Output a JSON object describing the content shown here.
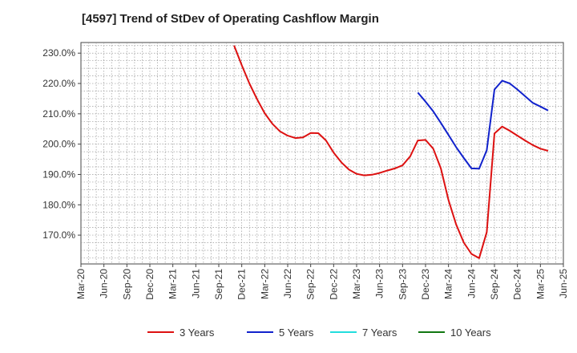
{
  "chart_data": {
    "type": "line",
    "title": "[4597]  Trend of StDev of Operating Cashflow Margin",
    "xlabel": "",
    "ylabel": "",
    "x_ticks": [
      "Mar-20",
      "Jun-20",
      "Sep-20",
      "Dec-20",
      "Mar-21",
      "Jun-21",
      "Sep-21",
      "Dec-21",
      "Mar-22",
      "Jun-22",
      "Sep-22",
      "Dec-22",
      "Mar-23",
      "Jun-23",
      "Sep-23",
      "Dec-23",
      "Mar-24",
      "Jun-24",
      "Sep-24",
      "Dec-24",
      "Mar-25",
      "Jun-25"
    ],
    "y_ticks": [
      "230.0%",
      "220.0%",
      "210.0%",
      "200.0%",
      "190.0%",
      "180.0%",
      "170.0%"
    ],
    "ylim": [
      160.5,
      233.5
    ],
    "grid": true,
    "legend_position": "bottom",
    "series": [
      {
        "name": "3 Years",
        "color": "#dd1111",
        "points": [
          [
            "Nov-21",
            232.5
          ],
          [
            "Dec-21",
            226.0
          ],
          [
            "Jan-22",
            220.0
          ],
          [
            "Feb-22",
            214.8
          ],
          [
            "Mar-22",
            210.2
          ],
          [
            "Apr-22",
            206.7
          ],
          [
            "May-22",
            204.2
          ],
          [
            "Jun-22",
            202.8
          ],
          [
            "Jul-22",
            202.0
          ],
          [
            "Aug-22",
            202.2
          ],
          [
            "Sep-22",
            203.7
          ],
          [
            "Oct-22",
            203.6
          ],
          [
            "Nov-22",
            201.2
          ],
          [
            "Dec-22",
            197.2
          ],
          [
            "Jan-23",
            194.0
          ],
          [
            "Feb-23",
            191.6
          ],
          [
            "Mar-23",
            190.2
          ],
          [
            "Apr-23",
            189.7
          ],
          [
            "May-23",
            189.9
          ],
          [
            "Jun-23",
            190.5
          ],
          [
            "Jul-23",
            191.3
          ],
          [
            "Aug-23",
            192.0
          ],
          [
            "Sep-23",
            193.0
          ],
          [
            "Oct-23",
            196.0
          ],
          [
            "Nov-23",
            201.2
          ],
          [
            "Dec-23",
            201.4
          ],
          [
            "Jan-24",
            198.5
          ],
          [
            "Feb-24",
            192.0
          ],
          [
            "Mar-24",
            181.5
          ],
          [
            "Apr-24",
            173.5
          ],
          [
            "May-24",
            167.5
          ],
          [
            "Jun-24",
            163.8
          ],
          [
            "Jul-24",
            162.4
          ],
          [
            "Aug-24",
            171.0
          ],
          [
            "Sep-24",
            203.5
          ],
          [
            "Oct-24",
            205.8
          ],
          [
            "Nov-24",
            204.4
          ],
          [
            "Dec-24",
            202.8
          ],
          [
            "Jan-25",
            201.2
          ],
          [
            "Feb-25",
            199.7
          ],
          [
            "Mar-25",
            198.5
          ],
          [
            "Apr-25",
            197.8
          ]
        ]
      },
      {
        "name": "5 Years",
        "color": "#1122cc",
        "points": [
          [
            "Nov-23",
            217.0
          ],
          [
            "Dec-23",
            214.0
          ],
          [
            "Jan-24",
            210.8
          ],
          [
            "Feb-24",
            207.0
          ],
          [
            "Mar-24",
            203.0
          ],
          [
            "Apr-24",
            199.0
          ],
          [
            "May-24",
            195.4
          ],
          [
            "Jun-24",
            192.0
          ],
          [
            "Jul-24",
            191.9
          ],
          [
            "Aug-24",
            198.0
          ],
          [
            "Sep-24",
            218.0
          ],
          [
            "Oct-24",
            220.9
          ],
          [
            "Nov-24",
            220.0
          ],
          [
            "Dec-24",
            218.0
          ],
          [
            "Jan-25",
            215.8
          ],
          [
            "Feb-25",
            213.6
          ],
          [
            "Mar-25",
            212.4
          ],
          [
            "Apr-25",
            211.1
          ]
        ]
      },
      {
        "name": "7 Years",
        "color": "#22dddd",
        "points": []
      },
      {
        "name": "10 Years",
        "color": "#117711",
        "points": []
      }
    ]
  }
}
